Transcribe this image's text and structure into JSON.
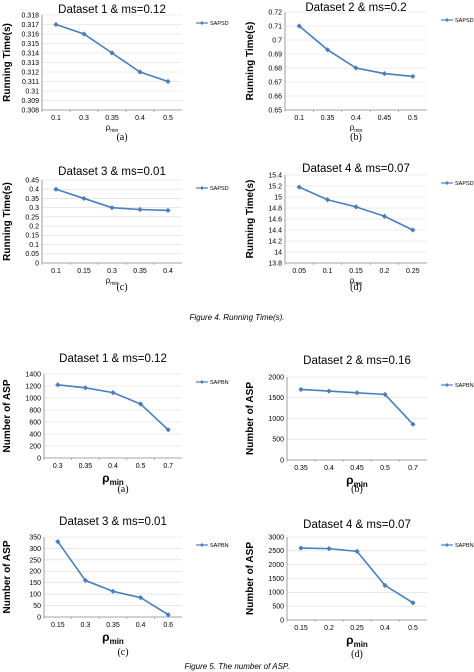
{
  "figure4_caption": "Figure 4.  Running Time(s).",
  "figure5_caption": "Figure 5.  The number of ASP.",
  "series_color": "#4a7ebb",
  "chart_data": [
    {
      "type": "line",
      "title": "Dataset 1 & ms=0.12",
      "xlabel": "ρmin",
      "ylabel": "Running Time(s)",
      "sublabel": "(a)",
      "categories": [
        "0.1",
        "0.3",
        "0.35",
        "0.4",
        "0.5"
      ],
      "series": [
        {
          "name": "SAPSD",
          "values": [
            0.317,
            0.316,
            0.314,
            0.312,
            0.311
          ]
        }
      ],
      "ylim": [
        0.308,
        0.318
      ],
      "yticks": [
        "0.308",
        "0.309",
        "0.31",
        "0.311",
        "0.312",
        "0.313",
        "0.314",
        "0.315",
        "0.316",
        "0.317",
        "0.318"
      ],
      "legend": "right",
      "grid": true
    },
    {
      "type": "line",
      "title": "Dataset 2 & ms=0.2",
      "xlabel": "ρmin",
      "ylabel": "Running Time(s)",
      "sublabel": "(b)",
      "categories": [
        "0.1",
        "0.35",
        "0.4",
        "0.45",
        "0.5"
      ],
      "series": [
        {
          "name": "SAPSD",
          "values": [
            0.71,
            0.693,
            0.68,
            0.676,
            0.674
          ]
        }
      ],
      "ylim": [
        0.65,
        0.72
      ],
      "yticks": [
        "0.65",
        "0.66",
        "0.67",
        "0.68",
        "0.69",
        "0.7",
        "0.71",
        "0.72"
      ],
      "legend": "right",
      "grid": true
    },
    {
      "type": "line",
      "title": "Dataset 3 & ms=0.01",
      "xlabel": "ρmin",
      "ylabel": "Running Time(s)",
      "sublabel": "(c)",
      "categories": [
        "0.1",
        "0.15",
        "0.3",
        "0.35",
        "0.4"
      ],
      "series": [
        {
          "name": "SAPSD",
          "values": [
            0.4,
            0.35,
            0.3,
            0.29,
            0.285
          ]
        }
      ],
      "ylim": [
        0,
        0.45
      ],
      "yticks": [
        "0",
        "0.05",
        "0.1",
        "0.15",
        "0.2",
        "0.25",
        "0.3",
        "0.35",
        "0.4",
        "0.45"
      ],
      "legend": "right",
      "grid": true
    },
    {
      "type": "line",
      "title": "Dataset 4 & ms=0.07",
      "xlabel": "ρmin",
      "ylabel": "Running Time(s)",
      "sublabel": "(d)",
      "categories": [
        "0.05",
        "0.1",
        "0.15",
        "0.2",
        "0.25"
      ],
      "series": [
        {
          "name": "SAPSD",
          "values": [
            15.18,
            14.95,
            14.82,
            14.65,
            14.4
          ]
        }
      ],
      "ylim": [
        13.8,
        15.4
      ],
      "yticks": [
        "13.8",
        "14",
        "14.2",
        "14.4",
        "14.6",
        "14.8",
        "15",
        "15.2",
        "15.4"
      ],
      "legend": "right",
      "grid": true
    },
    {
      "type": "line",
      "title": "Dataset 1 & ms=0.12",
      "xlabel": "ρmin",
      "ylabel": "Number of ASP",
      "sublabel": "(a)",
      "categories": [
        "0.3",
        "0.35",
        "0.4",
        "0.5",
        "0.7"
      ],
      "series": [
        {
          "name": "SAPBN",
          "values": [
            1220,
            1170,
            1090,
            900,
            470
          ]
        }
      ],
      "ylim": [
        0,
        1400
      ],
      "yticks": [
        "0",
        "200",
        "400",
        "600",
        "800",
        "1000",
        "1200",
        "1400"
      ],
      "legend": "right",
      "grid": true
    },
    {
      "type": "line",
      "title": "Dataset 2 & ms=0.16",
      "xlabel": "ρmin",
      "ylabel": "Number of ASP",
      "sublabel": "(b)",
      "categories": [
        "0.35",
        "0.4",
        "0.45",
        "0.5",
        "0.7"
      ],
      "series": [
        {
          "name": "SAPBN",
          "values": [
            1700,
            1660,
            1620,
            1580,
            860
          ]
        }
      ],
      "ylim": [
        0,
        2000
      ],
      "yticks": [
        "0",
        "500",
        "1000",
        "1500",
        "2000"
      ],
      "legend": "right",
      "grid": true
    },
    {
      "type": "line",
      "title": "Dataset 3 & ms=0.01",
      "xlabel": "ρmin",
      "ylabel": "Number of ASP",
      "sublabel": "(c)",
      "categories": [
        "0.15",
        "0.3",
        "0.35",
        "0.4",
        "0.6"
      ],
      "series": [
        {
          "name": "SAPBN",
          "values": [
            330,
            160,
            112,
            85,
            10
          ]
        }
      ],
      "ylim": [
        0,
        350
      ],
      "yticks": [
        "0",
        "50",
        "100",
        "150",
        "200",
        "250",
        "300",
        "350"
      ],
      "legend": "right",
      "grid": true
    },
    {
      "type": "line",
      "title": "Dataset 4 & ms=0.07",
      "xlabel": "ρmin",
      "ylabel": "Number of ASP",
      "sublabel": "(d)",
      "categories": [
        "0.15",
        "0.2",
        "0.25",
        "0.4",
        "0.5"
      ],
      "series": [
        {
          "name": "SAPBN",
          "values": [
            2600,
            2580,
            2480,
            1250,
            620
          ]
        }
      ],
      "ylim": [
        0,
        3000
      ],
      "yticks": [
        "0",
        "500",
        "1000",
        "1500",
        "2000",
        "2500",
        "3000"
      ],
      "legend": "right",
      "grid": true
    }
  ]
}
